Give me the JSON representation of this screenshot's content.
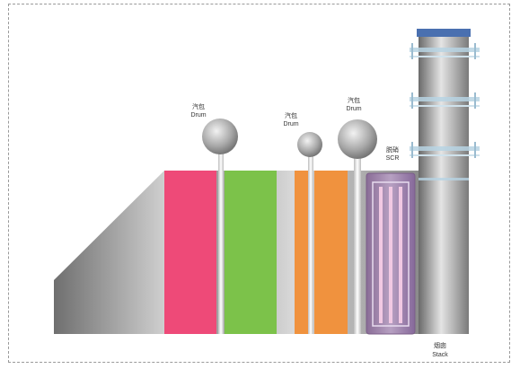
{
  "labels": {
    "drum_1_cn": "汽包",
    "drum_1_en": "Drum",
    "drum_2_cn": "汽包",
    "drum_2_en": "Drum",
    "drum_3_cn": "汽包",
    "drum_3_en": "Drum",
    "scr_cn": "脱硝",
    "scr_en": "SCR",
    "stack_cn": "烟囱",
    "stack_en": "Stack"
  },
  "colors": {
    "pink_module": "#ee4a78",
    "green_module": "#7cc24a",
    "orange_module": "#f0923e",
    "scr_module": "#9a7ea6",
    "stack_cap": "#4a70b0",
    "casing_gray": "#9c9c9c"
  },
  "icons": [
    "drum-icon",
    "stack-icon",
    "scr-icon"
  ]
}
